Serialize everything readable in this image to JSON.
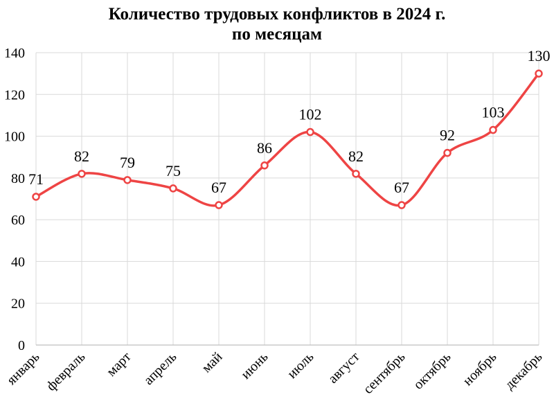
{
  "chart_data": {
    "type": "line",
    "title_line1": "Количество трудовых конфликтов в 2024 г.",
    "title_line2": "по месяцам",
    "categories": [
      "январь",
      "февраль",
      "март",
      "апрель",
      "май",
      "июнь",
      "июль",
      "август",
      "сентябрь",
      "октябрь",
      "ноябрь",
      "декабрь"
    ],
    "values": [
      71,
      82,
      79,
      75,
      67,
      86,
      102,
      82,
      67,
      92,
      103,
      130
    ],
    "yticks": [
      0,
      20,
      40,
      60,
      80,
      100,
      120,
      140
    ],
    "ylim": [
      0,
      140
    ],
    "grid": true,
    "smooth": true,
    "line_color": "#EE4444",
    "marker_fill": "#FFFFFF",
    "grid_color": "#D9D9D9",
    "axis_color": "#BFBFBF"
  }
}
